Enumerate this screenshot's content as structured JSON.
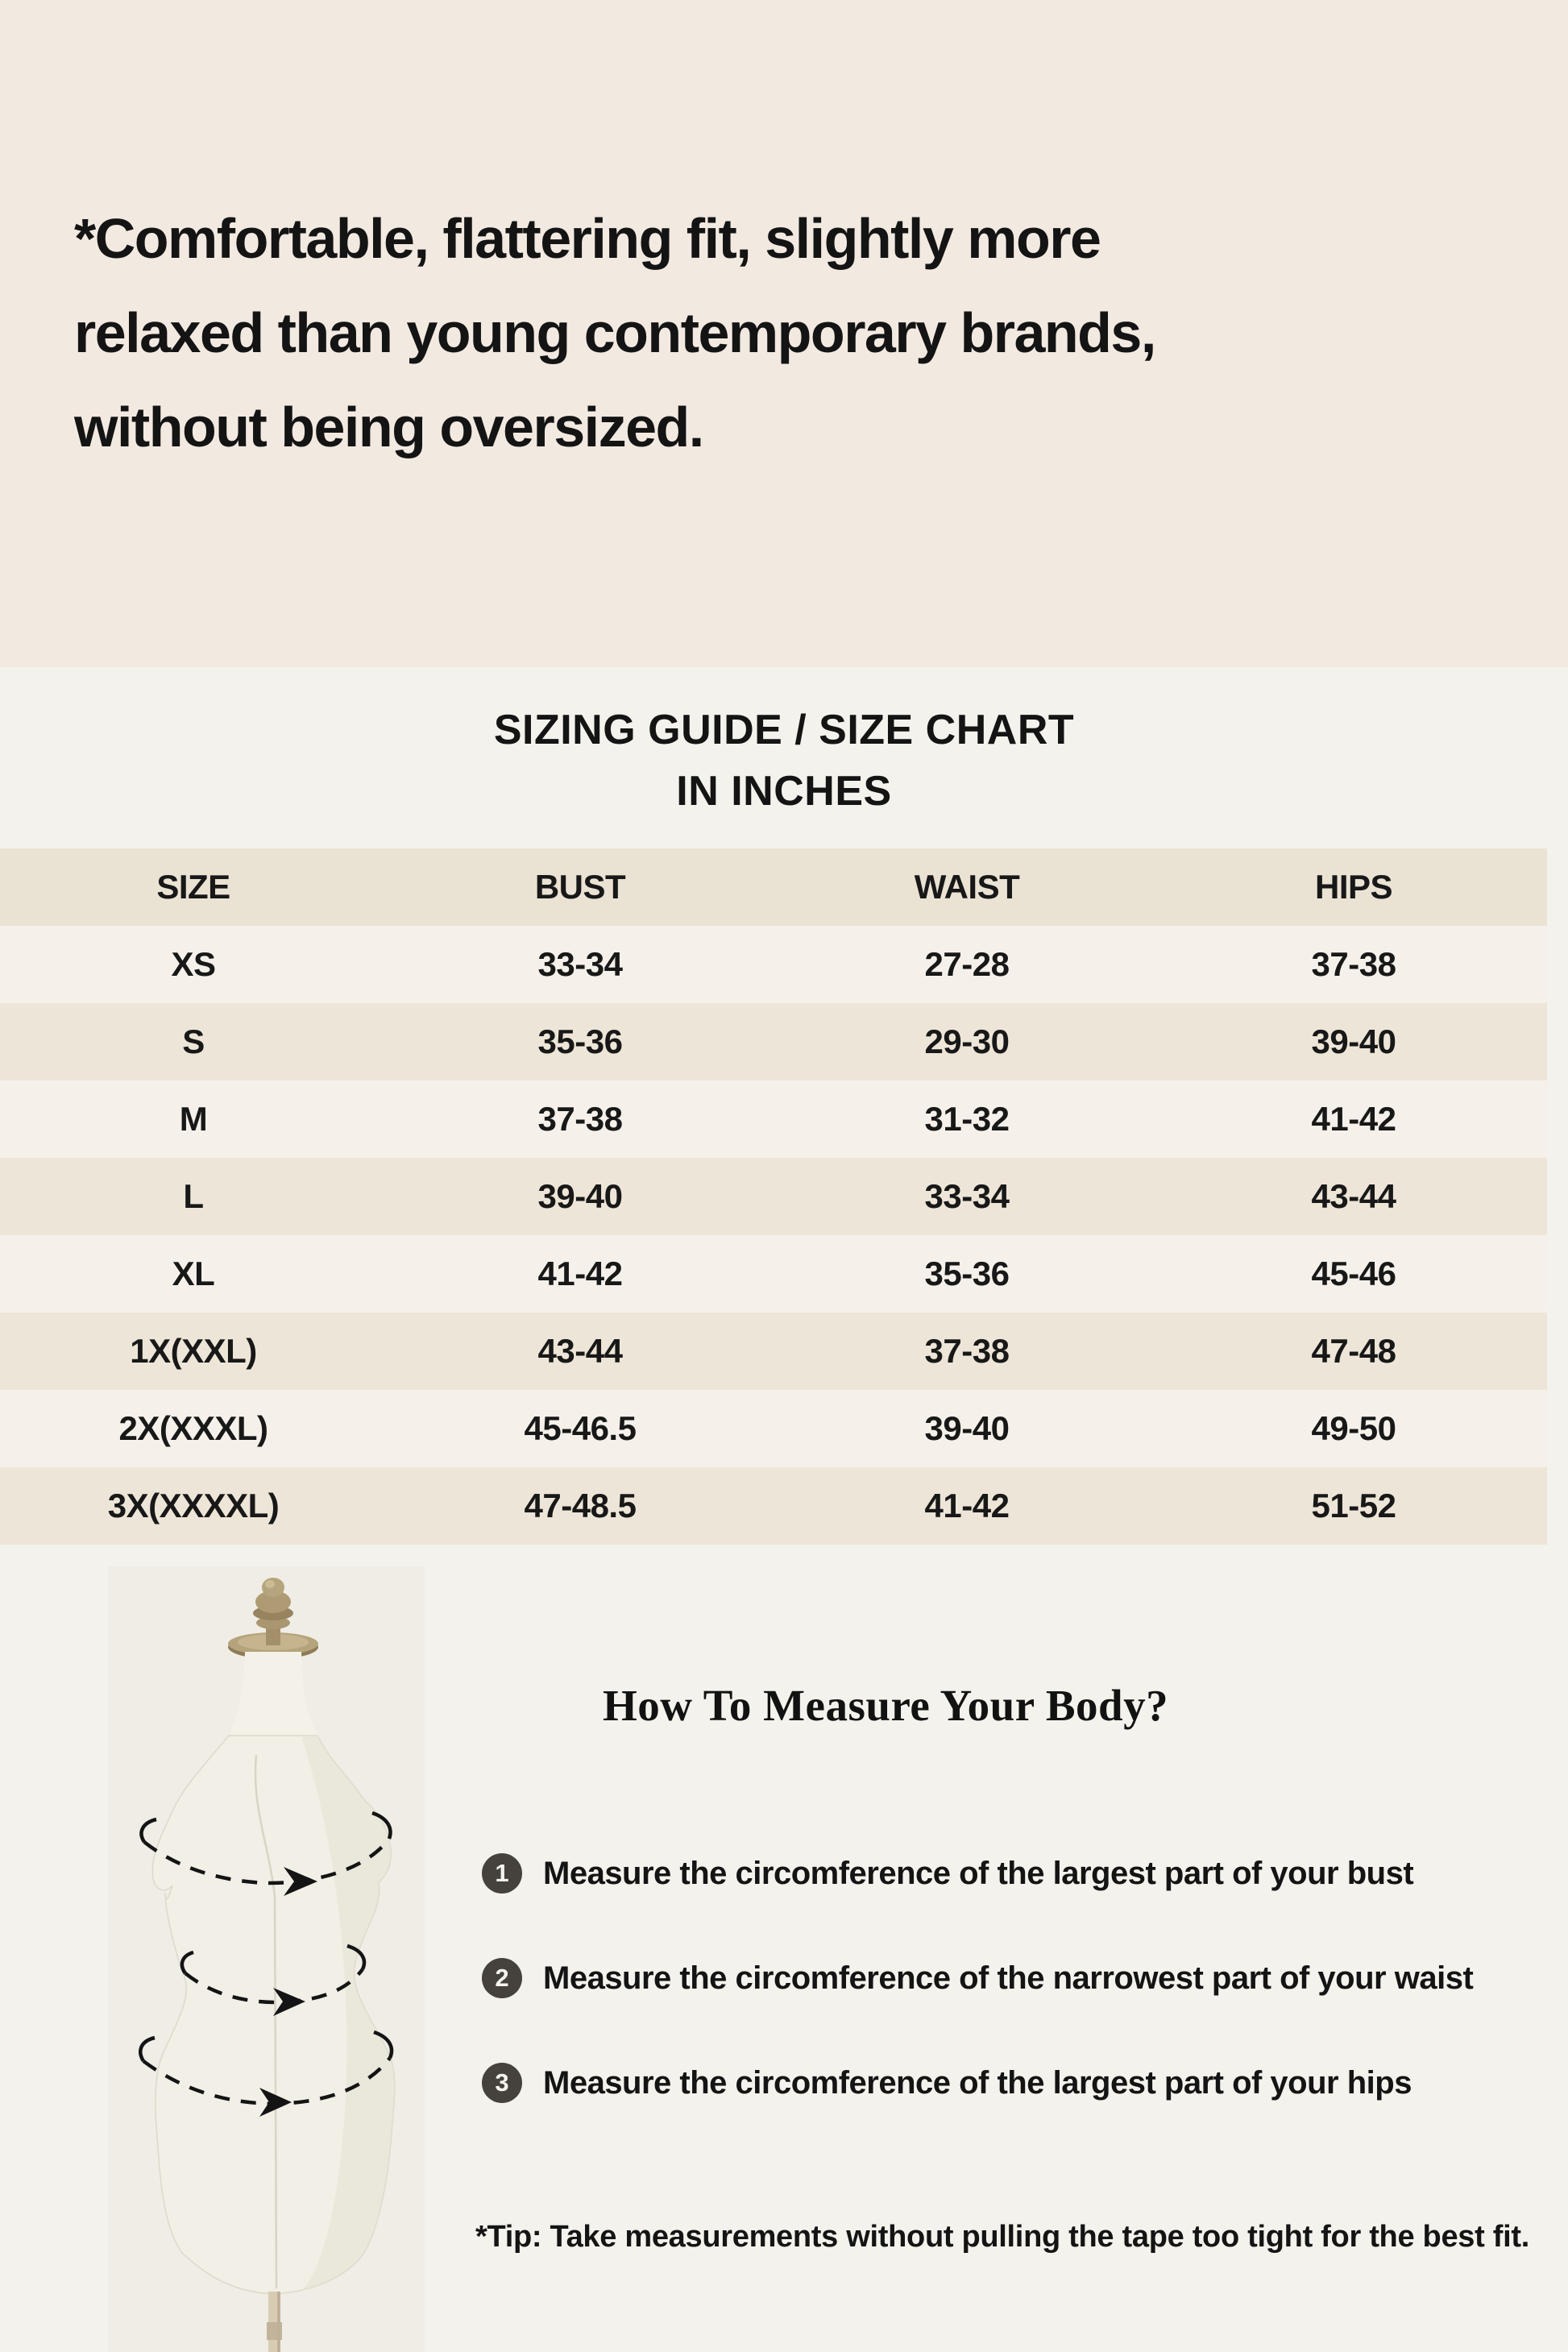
{
  "page": {
    "headline": "*Comfortable, flattering fit, slightly more\nrelaxed than young contemporary brands,\nwithout being oversized.",
    "colors": {
      "top_section_bg": "#F2E9E1",
      "page_bg": "#F4F2EC",
      "table_header_bg": "#EAE2D3",
      "table_stripe_beige": "#EDE5D7",
      "table_stripe_light": "#F5F1EA",
      "text": "#141414",
      "step_bullet_bg": "#45423D",
      "brass": "#AB9770",
      "mannequin_body": "#F1EFE6"
    }
  },
  "size_chart": {
    "title_line1": "SIZING GUIDE / SIZE CHART",
    "title_line2": "IN INCHES",
    "columns": [
      "SIZE",
      "BUST",
      "WAIST",
      "HIPS"
    ],
    "rows": [
      [
        "XS",
        "33-34",
        "27-28",
        "37-38"
      ],
      [
        "S",
        "35-36",
        "29-30",
        "39-40"
      ],
      [
        "M",
        "37-38",
        "31-32",
        "41-42"
      ],
      [
        "L",
        "39-40",
        "33-34",
        "43-44"
      ],
      [
        "XL",
        "41-42",
        "35-36",
        "45-46"
      ],
      [
        "1X(XXL)",
        "43-44",
        "37-38",
        "47-48"
      ],
      [
        "2X(XXXL)",
        "45-46.5",
        "39-40",
        "49-50"
      ],
      [
        "3X(XXXXL)",
        "47-48.5",
        "41-42",
        "51-52"
      ]
    ]
  },
  "chart_data": {
    "type": "table",
    "title": "SIZING GUIDE / SIZE CHART IN INCHES",
    "columns": [
      "SIZE",
      "BUST",
      "WAIST",
      "HIPS"
    ],
    "rows": [
      [
        "XS",
        "33-34",
        "27-28",
        "37-38"
      ],
      [
        "S",
        "35-36",
        "29-30",
        "39-40"
      ],
      [
        "M",
        "37-38",
        "31-32",
        "41-42"
      ],
      [
        "L",
        "39-40",
        "33-34",
        "43-44"
      ],
      [
        "XL",
        "41-42",
        "35-36",
        "45-46"
      ],
      [
        "1X(XXL)",
        "43-44",
        "37-38",
        "47-48"
      ],
      [
        "2X(XXXL)",
        "45-46.5",
        "39-40",
        "49-50"
      ],
      [
        "3X(XXXXL)",
        "47-48.5",
        "41-42",
        "51-52"
      ]
    ]
  },
  "measure": {
    "title": "How To Measure Your Body?",
    "steps": [
      {
        "number": "1",
        "text": "Measure the circomference of the largest part of your bust"
      },
      {
        "number": "2",
        "text": "Measure the circomference of the narrowest part of your waist"
      },
      {
        "number": "3",
        "text": "Measure the circomference of the largest part of your hips"
      }
    ],
    "tip": "*Tip: Take measurements without pulling the tape too tight for the best fit."
  }
}
